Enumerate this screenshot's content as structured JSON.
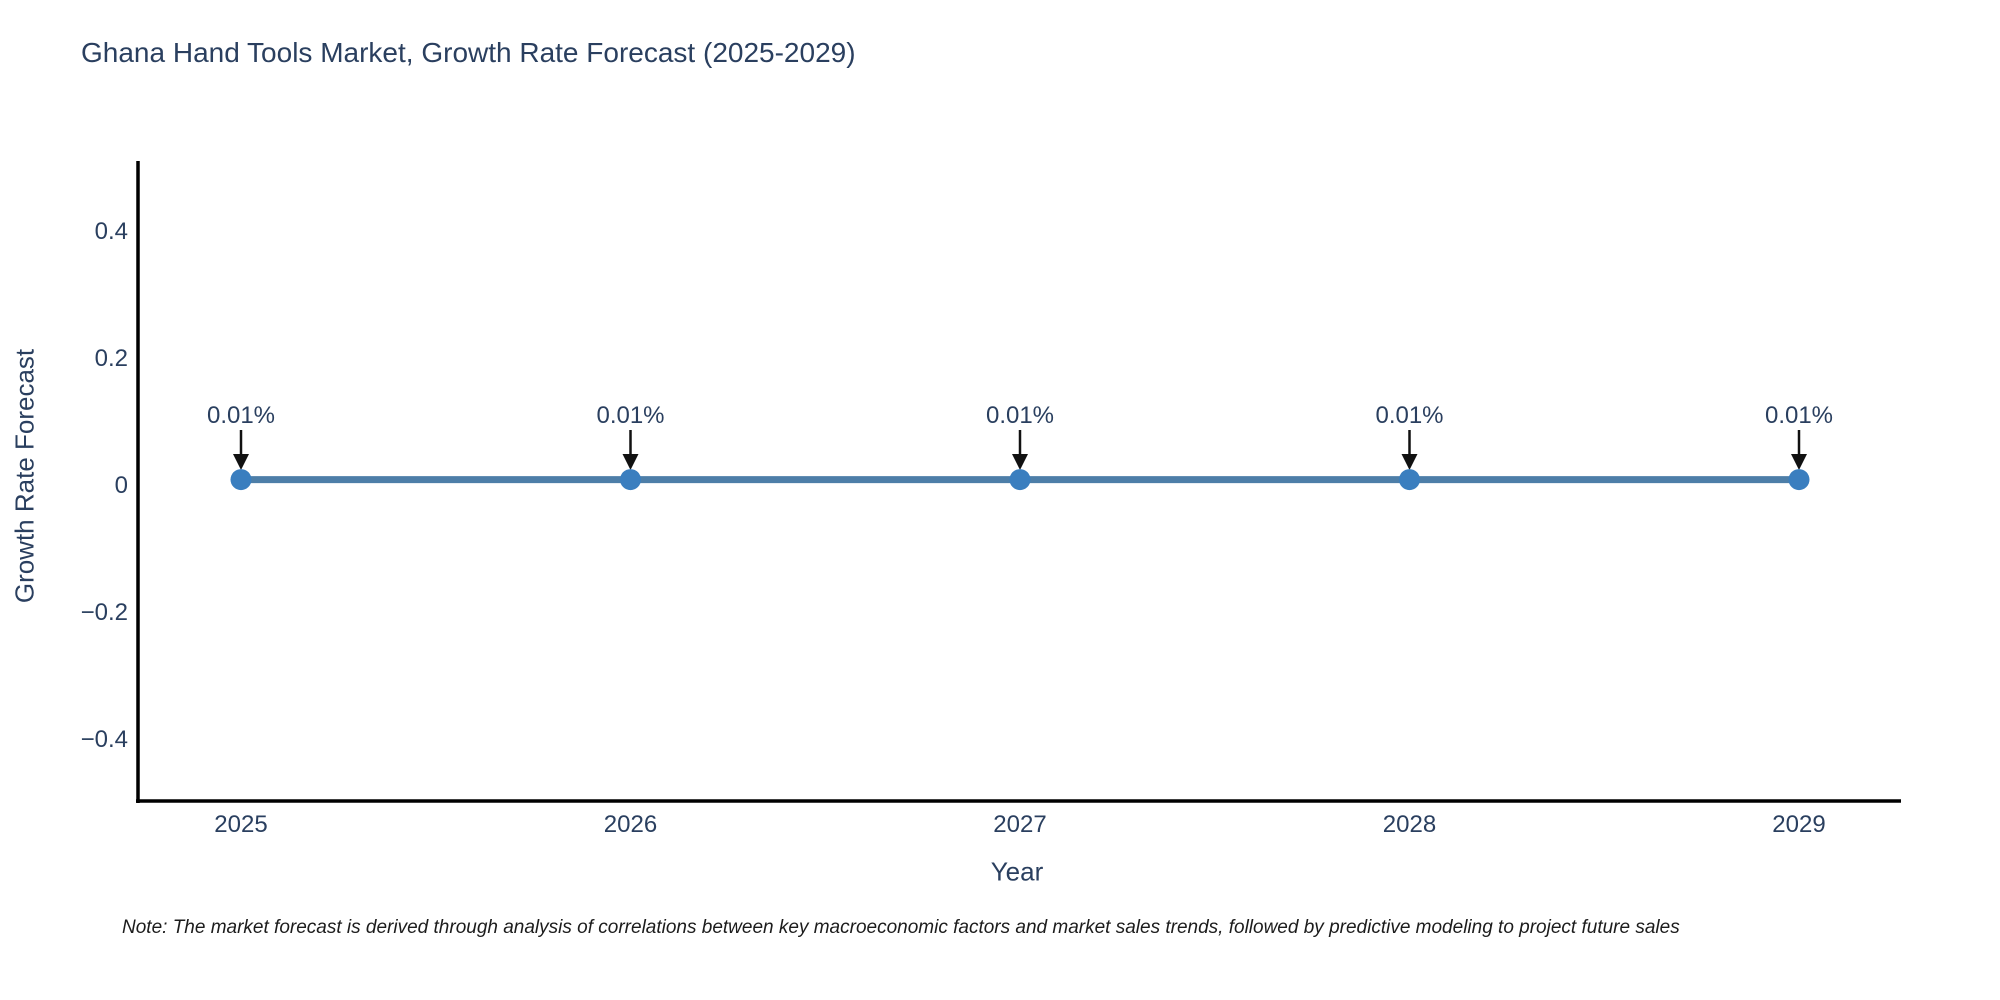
{
  "title": "Ghana Hand Tools Market, Growth Rate Forecast (2025-2029)",
  "note": "Note: The market forecast is derived through analysis of correlations between key macroeconomic factors and market sales trends, followed by predictive modeling to project future sales",
  "colors": {
    "line": "#4d7ea8",
    "marker": "#3a7ebf",
    "axis": "#000000",
    "arrow": "#111111",
    "text": "#2a3f5f",
    "background": "#ffffff"
  },
  "chart_data": {
    "type": "line",
    "title": "Ghana Hand Tools Market, Growth Rate Forecast (2025-2029)",
    "xlabel": "Year",
    "ylabel": "Growth Rate Forecast",
    "categories": [
      "2025",
      "2026",
      "2027",
      "2028",
      "2029"
    ],
    "series": [
      {
        "name": "Growth Rate Forecast",
        "values": [
          0.01,
          0.01,
          0.01,
          0.01,
          0.01
        ]
      }
    ],
    "point_labels": [
      "0.01%",
      "0.01%",
      "0.01%",
      "0.01%",
      "0.01%"
    ],
    "ytick_labels": [
      "0.4",
      "0.2",
      "0",
      "−0.2",
      "−0.4"
    ],
    "ytick_values": [
      0.4,
      0.2,
      0,
      -0.2,
      -0.4
    ],
    "ylim": [
      -0.5,
      0.51
    ],
    "grid": false,
    "legend": "none",
    "annotation_style": "label-with-down-arrow"
  }
}
